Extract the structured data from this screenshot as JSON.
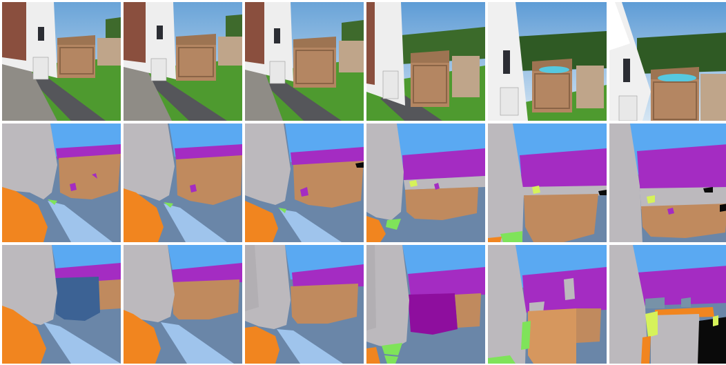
{
  "grid": {
    "rows": [
      "photo",
      "segmentation-a",
      "segmentation-b"
    ],
    "columns": 6
  },
  "palette": {
    "sky": "#5aa9f2",
    "trees": "#a42cc2",
    "house": "#bcb9bd",
    "ground": "#6a86a8",
    "road": "#9fc4ec",
    "orange": "#f1851f",
    "deck": "#c08a5e",
    "green": "#7fe35a",
    "lime": "#d6f25a",
    "pool": "#3c6294",
    "dark-purple": "#8e0e9e",
    "black": "#0a0a0a"
  }
}
